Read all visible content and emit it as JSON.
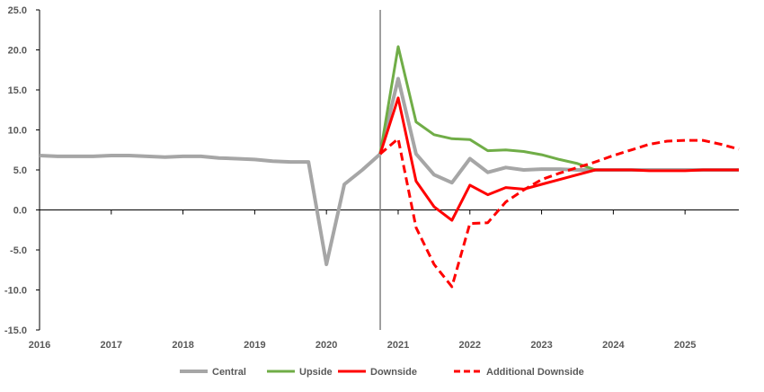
{
  "chart_data": {
    "type": "line",
    "title": "",
    "xlabel": "",
    "ylabel": "",
    "xlim": [
      2016,
      2025.75
    ],
    "ylim": [
      -15,
      25
    ],
    "y_ticks": [
      "25.0",
      "20.0",
      "15.0",
      "10.0",
      "5.0",
      "0.0",
      "-5.0",
      "-10.0",
      "-15.0"
    ],
    "y_tick_values": [
      25,
      20,
      15,
      10,
      5,
      0,
      -5,
      -10,
      -15
    ],
    "x_ticks": [
      "2016",
      "2017",
      "2018",
      "2019",
      "2020",
      "2021",
      "2022",
      "2023",
      "2024",
      "2025"
    ],
    "x_tick_values": [
      2016,
      2017,
      2018,
      2019,
      2020,
      2021,
      2022,
      2023,
      2024,
      2025
    ],
    "vertical_marker": 2020.75,
    "legend_position": "bottom",
    "series": [
      {
        "name": "Central",
        "color": "#A6A6A6",
        "dashed": false,
        "start": 2016,
        "step": 0.25,
        "values": [
          6.8,
          6.7,
          6.7,
          6.7,
          6.8,
          6.8,
          6.7,
          6.6,
          6.7,
          6.7,
          6.5,
          6.4,
          6.3,
          6.1,
          6.0,
          6.0,
          -6.8,
          3.2,
          5.0,
          7.0,
          16.4,
          7.0,
          4.4,
          3.4,
          6.4,
          4.7,
          5.3,
          5.0,
          5.1,
          5.1,
          5.0,
          5.0,
          5.0,
          5.0,
          5.0,
          5.0,
          5.0,
          5.0,
          5.0,
          5.0
        ]
      },
      {
        "name": "Upside",
        "color": "#70AD47",
        "dashed": false,
        "start": 2020.75,
        "step": 0.25,
        "values": [
          7.0,
          20.4,
          11.0,
          9.4,
          8.9,
          8.8,
          7.4,
          7.5,
          7.3,
          6.9,
          6.3,
          5.8,
          5.0
        ]
      },
      {
        "name": "Downside",
        "color": "#FF0000",
        "dashed": false,
        "start": 2020.75,
        "step": 0.25,
        "values": [
          7.0,
          14.0,
          3.6,
          0.4,
          -1.3,
          3.1,
          1.9,
          2.8,
          2.6,
          3.2,
          3.8,
          4.4,
          5.0,
          5.0,
          5.0,
          4.9,
          4.9,
          4.9,
          5.0,
          5.0,
          5.0
        ]
      },
      {
        "name": "Additional Downside",
        "color": "#FF0000",
        "dashed": true,
        "start": 2020.75,
        "step": 0.25,
        "values": [
          7.0,
          8.9,
          -2.2,
          -6.8,
          -9.6,
          -1.7,
          -1.6,
          1.0,
          2.5,
          3.8,
          4.6,
          5.3,
          6.0,
          6.8,
          7.5,
          8.2,
          8.6,
          8.7,
          8.7,
          8.2,
          7.6
        ]
      }
    ]
  }
}
